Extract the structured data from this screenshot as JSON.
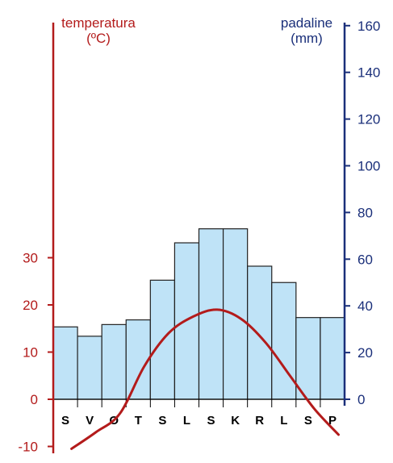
{
  "colors": {
    "temperature": "#b31b1b",
    "precipitation_axis": "#1a2f7a",
    "bar_fill": "#bfe3f7",
    "bar_stroke": "#222222"
  },
  "chart_data": {
    "type": "bar",
    "categories": [
      "S",
      "V",
      "O",
      "T",
      "S",
      "L",
      "S",
      "K",
      "R",
      "L",
      "S",
      "P"
    ],
    "left_axis": {
      "label_line1": "temperatura",
      "label_line2": "(ºC)",
      "ticks": [
        -10,
        0,
        10,
        20,
        30
      ],
      "range": [
        -10,
        30
      ]
    },
    "right_axis": {
      "label_line1": "padaline",
      "label_line2": "(mm)",
      "ticks": [
        0,
        20,
        40,
        60,
        80,
        100,
        120,
        140,
        160
      ],
      "range": [
        0,
        160
      ]
    },
    "series": [
      {
        "type": "bar",
        "axis": "right",
        "values": [
          31,
          27,
          32,
          34,
          51,
          67,
          73,
          73,
          57,
          50,
          35,
          35
        ]
      },
      {
        "type": "line",
        "axis": "left",
        "values": [
          -10.5,
          -7,
          -3,
          7,
          14,
          17.5,
          19,
          17,
          12,
          5,
          -2,
          -7.5
        ]
      }
    ]
  }
}
